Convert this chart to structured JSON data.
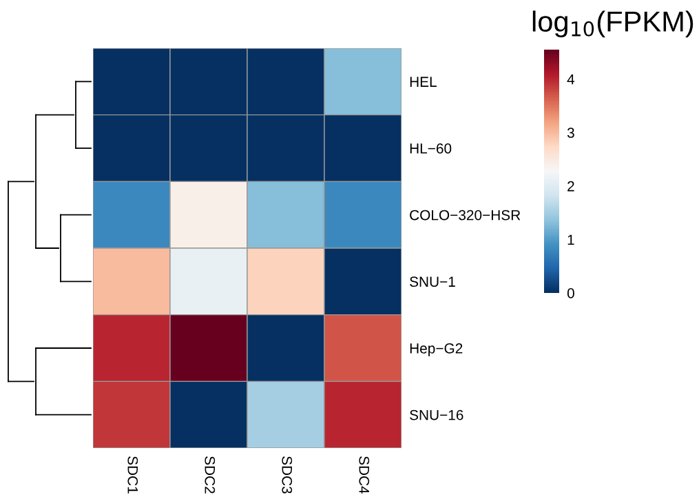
{
  "chart_data": {
    "type": "heatmap",
    "clabel": "log$_{10}$(FPKM)",
    "categories": [
      "SDC1",
      "SDC2",
      "SDC3",
      "SDC4"
    ],
    "y_categories": [
      "HEL",
      "HL−60",
      "COLO−320−HSR",
      "SNU−1",
      "Hep−G2",
      "SNU−16"
    ],
    "cells": [
      [
        0,
        0,
        0,
        1.3
      ],
      [
        0,
        0,
        0,
        0
      ],
      [
        0.8,
        2.4,
        1.3,
        0.8
      ],
      [
        3.0,
        2.1,
        2.8,
        0
      ],
      [
        4.0,
        4.55,
        0,
        3.7
      ],
      [
        3.9,
        0,
        1.5,
        4.0
      ]
    ],
    "clim": [
      0,
      4.55
    ],
    "cticks": [
      0,
      1,
      2,
      3,
      4
    ]
  }
}
